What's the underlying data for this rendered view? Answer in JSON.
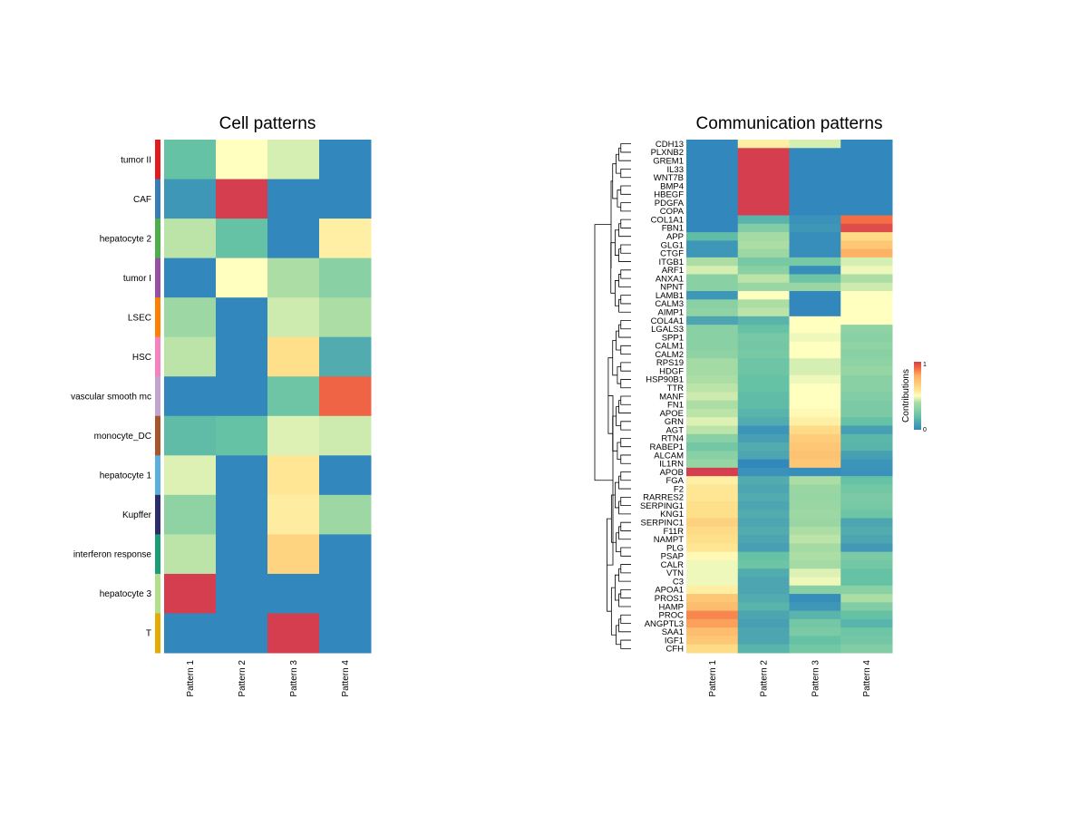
{
  "chart_data": [
    {
      "type": "heatmap",
      "title": "Cell patterns",
      "columns": [
        "Pattern 1",
        "Pattern 2",
        "Pattern 3",
        "Pattern 4"
      ],
      "rows": [
        "tumor II",
        "CAF",
        "hepatocyte 2",
        "tumor I",
        "LSEC",
        "HSC",
        "vascular smooth mc",
        "monocyte_DC",
        "hepatocyte 1",
        "Kupffer",
        "interferon response",
        "hepatocyte 3",
        "T"
      ],
      "row_colors": [
        "#e41a1c",
        "#377eb8",
        "#4daf4a",
        "#984ea3",
        "#ff7f00",
        "#f781bf",
        "#c2a5cf",
        "#a65628",
        "#5aaee0",
        "#2c2d6b",
        "#1b9e77",
        "#b2df8a",
        "#e6ab02"
      ],
      "values": [
        [
          0.2,
          0.5,
          0.45,
          0.0
        ],
        [
          0.05,
          1.0,
          0.0,
          0.0
        ],
        [
          0.42,
          0.2,
          0.0,
          0.55
        ],
        [
          0.0,
          0.5,
          0.4,
          0.3
        ],
        [
          0.36,
          0.0,
          0.44,
          0.4
        ],
        [
          0.42,
          0.0,
          0.6,
          0.12
        ],
        [
          0.0,
          0.0,
          0.22,
          0.92
        ],
        [
          0.18,
          0.2,
          0.46,
          0.44
        ],
        [
          0.46,
          0.0,
          0.58,
          0.0
        ],
        [
          0.32,
          0.0,
          0.56,
          0.36
        ],
        [
          0.42,
          0.0,
          0.65,
          0.0
        ],
        [
          1.0,
          0.0,
          0.0,
          0.0
        ],
        [
          0.0,
          0.0,
          1.0,
          0.0
        ]
      ]
    },
    {
      "type": "heatmap",
      "title": "Communication patterns",
      "columns": [
        "Pattern 1",
        "Pattern 2",
        "Pattern 3",
        "Pattern 4"
      ],
      "rows": [
        "CDH13",
        "PLXNB2",
        "GREM1",
        "IL33",
        "WNT7B",
        "BMP4",
        "HBEGF",
        "PDGFA",
        "COPA",
        "COL1A1",
        "FBN1",
        "APP",
        "GLG1",
        "CTGF",
        "ITGB1",
        "ARF1",
        "ANXA1",
        "NPNT",
        "LAMB1",
        "CALM3",
        "AIMP1",
        "COL4A1",
        "LGALS3",
        "SPP1",
        "CALM1",
        "CALM2",
        "RPS19",
        "HDGF",
        "HSP90B1",
        "TTR",
        "MANF",
        "FN1",
        "APOE",
        "GRN",
        "AGT",
        "RTN4",
        "RABEP1",
        "ALCAM",
        "IL1RN",
        "APOB",
        "FGA",
        "F2",
        "RARRES2",
        "SERPING1",
        "KNG1",
        "SERPINC1",
        "F11R",
        "NAMPT",
        "PLG",
        "PSAP",
        "CALR",
        "VTN",
        "C3",
        "APOA1",
        "PROS1",
        "HAMP",
        "PROC",
        "ANGPTL3",
        "SAA1",
        "IGF1",
        "CFH"
      ],
      "values": [
        [
          0.0,
          0.55,
          0.45,
          0.0
        ],
        [
          0.0,
          1.0,
          0.0,
          0.0
        ],
        [
          0.0,
          1.0,
          0.0,
          0.0
        ],
        [
          0.0,
          1.0,
          0.0,
          0.0
        ],
        [
          0.0,
          1.0,
          0.0,
          0.0
        ],
        [
          0.0,
          1.0,
          0.0,
          0.0
        ],
        [
          0.0,
          1.0,
          0.0,
          0.0
        ],
        [
          0.0,
          1.0,
          0.0,
          0.0
        ],
        [
          0.0,
          1.0,
          0.0,
          0.0
        ],
        [
          0.0,
          0.15,
          0.03,
          0.9
        ],
        [
          0.0,
          0.28,
          0.05,
          0.97
        ],
        [
          0.18,
          0.38,
          0.02,
          0.62
        ],
        [
          0.05,
          0.4,
          0.02,
          0.7
        ],
        [
          0.05,
          0.36,
          0.02,
          0.78
        ],
        [
          0.4,
          0.25,
          0.25,
          0.45
        ],
        [
          0.45,
          0.3,
          0.02,
          0.48
        ],
        [
          0.3,
          0.42,
          0.22,
          0.4
        ],
        [
          0.3,
          0.35,
          0.35,
          0.44
        ],
        [
          0.05,
          0.5,
          0.0,
          0.5
        ],
        [
          0.3,
          0.4,
          0.0,
          0.5
        ],
        [
          0.32,
          0.42,
          0.0,
          0.5
        ],
        [
          0.1,
          0.15,
          0.5,
          0.5
        ],
        [
          0.3,
          0.2,
          0.5,
          0.32
        ],
        [
          0.3,
          0.25,
          0.48,
          0.3
        ],
        [
          0.3,
          0.24,
          0.5,
          0.32
        ],
        [
          0.32,
          0.25,
          0.5,
          0.3
        ],
        [
          0.38,
          0.22,
          0.45,
          0.32
        ],
        [
          0.38,
          0.22,
          0.45,
          0.34
        ],
        [
          0.4,
          0.2,
          0.48,
          0.3
        ],
        [
          0.42,
          0.2,
          0.5,
          0.3
        ],
        [
          0.44,
          0.18,
          0.5,
          0.28
        ],
        [
          0.4,
          0.18,
          0.5,
          0.26
        ],
        [
          0.42,
          0.15,
          0.52,
          0.26
        ],
        [
          0.46,
          0.12,
          0.55,
          0.2
        ],
        [
          0.42,
          0.04,
          0.62,
          0.08
        ],
        [
          0.3,
          0.08,
          0.68,
          0.16
        ],
        [
          0.24,
          0.12,
          0.7,
          0.15
        ],
        [
          0.3,
          0.1,
          0.72,
          0.08
        ],
        [
          0.34,
          0.0,
          0.7,
          0.04
        ],
        [
          1.0,
          0.03,
          0.02,
          0.03
        ],
        [
          0.55,
          0.12,
          0.4,
          0.2
        ],
        [
          0.58,
          0.1,
          0.35,
          0.24
        ],
        [
          0.58,
          0.12,
          0.34,
          0.26
        ],
        [
          0.6,
          0.1,
          0.35,
          0.25
        ],
        [
          0.6,
          0.12,
          0.36,
          0.22
        ],
        [
          0.66,
          0.1,
          0.35,
          0.1
        ],
        [
          0.62,
          0.12,
          0.4,
          0.12
        ],
        [
          0.6,
          0.1,
          0.42,
          0.1
        ],
        [
          0.58,
          0.08,
          0.38,
          0.06
        ],
        [
          0.52,
          0.2,
          0.4,
          0.26
        ],
        [
          0.48,
          0.22,
          0.38,
          0.24
        ],
        [
          0.48,
          0.12,
          0.46,
          0.2
        ],
        [
          0.48,
          0.1,
          0.48,
          0.2
        ],
        [
          0.55,
          0.1,
          0.3,
          0.3
        ],
        [
          0.7,
          0.12,
          0.02,
          0.4
        ],
        [
          0.74,
          0.15,
          0.05,
          0.28
        ],
        [
          0.86,
          0.1,
          0.15,
          0.2
        ],
        [
          0.82,
          0.08,
          0.24,
          0.15
        ],
        [
          0.74,
          0.1,
          0.26,
          0.22
        ],
        [
          0.7,
          0.1,
          0.2,
          0.24
        ],
        [
          0.62,
          0.15,
          0.24,
          0.28
        ]
      ],
      "legend": {
        "title": "Contributions",
        "ticks": [
          "0",
          "1"
        ],
        "placement": "right",
        "range": [
          0,
          1
        ]
      }
    }
  ]
}
